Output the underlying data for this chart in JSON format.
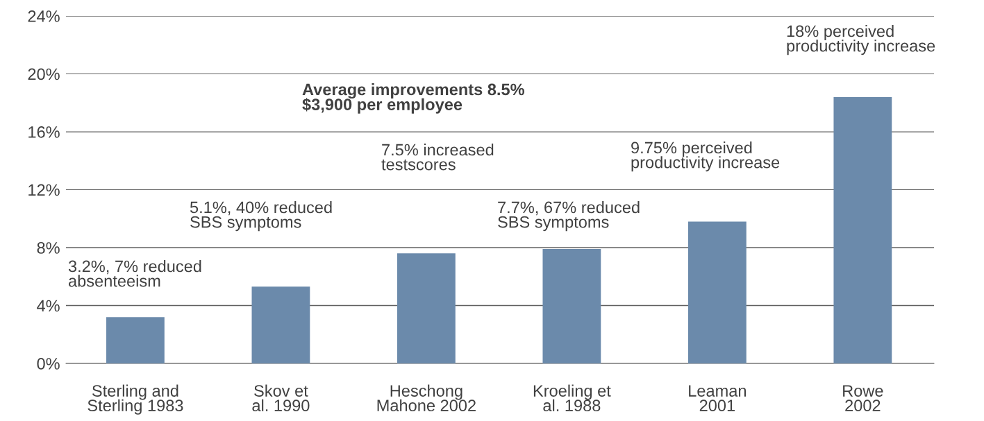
{
  "chart_data": {
    "type": "bar",
    "categories": [
      "Sterling and\nSterling 1983",
      "Skov et\nal. 1990",
      "Heschong\nMahone 2002",
      "Kroeling et\nal. 1988",
      "Leaman\n2001",
      "Rowe\n2002"
    ],
    "values": [
      3.2,
      5.3,
      7.6,
      7.9,
      9.8,
      18.4
    ],
    "color": "#6b8aab",
    "ylim": [
      0,
      24
    ],
    "yticks": [
      {
        "value": 0,
        "label": "0%"
      },
      {
        "value": 4,
        "label": "4%"
      },
      {
        "value": 8,
        "label": "8%"
      },
      {
        "value": 12,
        "label": "12%"
      },
      {
        "value": 16,
        "label": "16%"
      },
      {
        "value": 20,
        "label": "20%"
      },
      {
        "value": 24,
        "label": "24%"
      }
    ],
    "grid": "y",
    "annotations": [
      "3.2%, 7% reduced\nabsenteeism",
      "5.1%, 40% reduced\nSBS symptoms",
      "7.5% increased\ntestscores",
      "7.7%, 67% reduced\nSBS symptoms",
      "9.75% perceived\nproductivity increase",
      "18% perceived\nproductivity increase",
      "Average improvements 8.5%\n$3,900 per employee"
    ]
  }
}
